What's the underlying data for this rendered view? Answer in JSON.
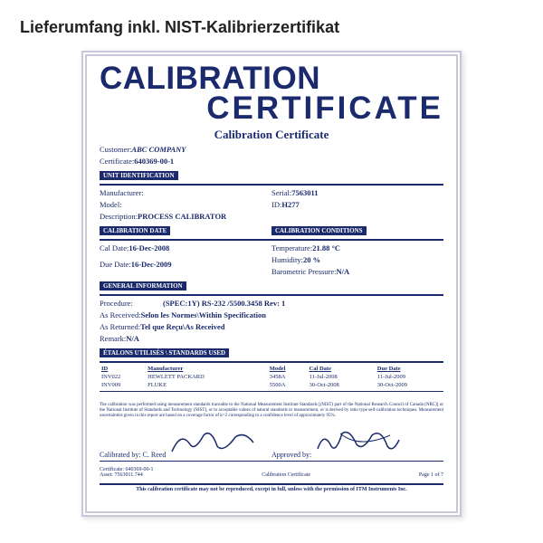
{
  "heading": "Lieferumfang inkl. NIST-Kalibrierzertifikat",
  "title_line1": "CALIBRATION",
  "title_line2": "CERTIFICATE",
  "subtitle": "Calibration Certificate",
  "customer": {
    "label": "Customer: ",
    "value": "ABC COMPANY"
  },
  "certificate": {
    "label": "Certificate: ",
    "value": "640369-00-1"
  },
  "sections": {
    "unit_id": "UNIT IDENTIFICATION",
    "cal_date": "CALIBRATION DATE",
    "cal_cond": "CALIBRATION CONDITIONS",
    "general": "GENERAL INFORMATION",
    "standards": "ÉTALONS UTILISÉS \\ STANDARDS USED"
  },
  "unit": {
    "manufacturer": {
      "label": "Manufacturer:",
      "value": ""
    },
    "serial": {
      "label": "Serial: ",
      "value": "7563011"
    },
    "model": {
      "label": "Model:",
      "value": ""
    },
    "id": {
      "label": "ID: ",
      "value": "H277"
    },
    "description": {
      "label": "Description: ",
      "value": "PROCESS CALIBRATOR"
    }
  },
  "dates": {
    "cal": {
      "label": "Cal Date: ",
      "value": "16-Dec-2008"
    },
    "due": {
      "label": "Due Date: ",
      "value": "16-Dec-2009"
    }
  },
  "conditions": {
    "temp": {
      "label": "Temperature: ",
      "value": "21.88 °C"
    },
    "humidity": {
      "label": "Humidity: ",
      "value": "20 %"
    },
    "pressure": {
      "label": "Barometric Pressure: ",
      "value": "N/A"
    }
  },
  "general": {
    "procedure": {
      "label": "Procedure:",
      "value": "(SPEC:1Y) RS-232 /5500.3458 Rev: 1"
    },
    "as_received": {
      "label": "As Received: ",
      "value": "Selon les Normes\\Within Specification"
    },
    "as_returned": {
      "label": "As Returned: ",
      "value": "Tel que Reçu\\As Received"
    },
    "remark": {
      "label": "Remark: ",
      "value": "N/A"
    }
  },
  "standards": {
    "headers": [
      "ID",
      "Manufacturer",
      "Model",
      "Cal Date",
      "Due Date"
    ],
    "rows": [
      [
        "INV022",
        "HEWLETT PACKARD",
        "3458A",
        "11-Jul-2008",
        "11-Jul-2009"
      ],
      [
        "INV009",
        "FLUKE",
        "5500A",
        "30-Oct-2008",
        "30-Oct-2009"
      ]
    ]
  },
  "disclaimer": "The calibration was performed using measurement standards traceable to the National Measurement Institute Standards [(NIST) part of the National Research Council of Canada (NRC)] or the National Institute of Standards and Technology (NIST), or to acceptable values of natural standards or measurement, or is derived by ratio type self-calibration techniques. Measurement uncertainties given in this report are based on a coverage factor of k=2 corresponding to a confidence level of approximately 95%.",
  "signatures": {
    "by": {
      "label": "Calibrated by: ",
      "value": "C. Reed"
    },
    "approved": "Approved by:"
  },
  "footer": {
    "cert": "Certificate: 640369-00-1",
    "asset": "Asset: 7563011.744",
    "mid": "Calibration Certificate",
    "page": "Page 1 of 7"
  },
  "bottom_note": "This calibration certificate may not be reproduced, except in full, unless with the permission of ITM Instruments Inc.",
  "colors": {
    "primary": "#1a2a6c",
    "border": "#c7c7d9",
    "text_black": "#222"
  }
}
